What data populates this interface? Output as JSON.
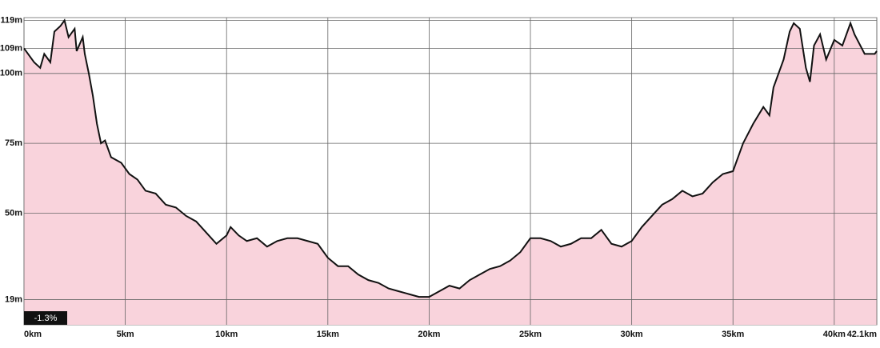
{
  "chart_data": {
    "type": "area",
    "x": [
      0,
      0.5,
      0.8,
      1.0,
      1.3,
      1.5,
      1.8,
      2.0,
      2.2,
      2.5,
      2.6,
      2.9,
      3.0,
      3.2,
      3.4,
      3.6,
      3.8,
      4.0,
      4.3,
      4.8,
      5.2,
      5.6,
      6.0,
      6.5,
      7.0,
      7.5,
      8.0,
      8.5,
      9.0,
      9.5,
      10.0,
      10.2,
      10.6,
      11.0,
      11.5,
      12.0,
      12.5,
      13.0,
      13.5,
      14.0,
      14.5,
      15.0,
      15.5,
      16.0,
      16.5,
      17.0,
      17.5,
      18.0,
      18.5,
      19.0,
      19.5,
      20.0,
      20.5,
      21.0,
      21.5,
      22.0,
      22.5,
      23.0,
      23.5,
      24.0,
      24.5,
      25.0,
      25.5,
      26.0,
      26.5,
      27.0,
      27.5,
      28.0,
      28.5,
      29.0,
      29.5,
      30.0,
      30.5,
      31.0,
      31.5,
      32.0,
      32.5,
      33.0,
      33.5,
      34.0,
      34.5,
      35.0,
      35.5,
      36.0,
      36.5,
      36.8,
      37.0,
      37.5,
      37.8,
      38.0,
      38.3,
      38.6,
      38.8,
      39.0,
      39.3,
      39.6,
      40.0,
      40.4,
      40.8,
      41.0,
      41.5,
      42.0,
      42.1
    ],
    "values": [
      109,
      104,
      102,
      107,
      104,
      115,
      117,
      119,
      113,
      116,
      108,
      113,
      107,
      100,
      92,
      82,
      75,
      76,
      70,
      68,
      64,
      62,
      58,
      57,
      53,
      52,
      49,
      47,
      43,
      39,
      42,
      45,
      42,
      40,
      41,
      38,
      40,
      41,
      41,
      40,
      39,
      34,
      31,
      31,
      28,
      26,
      25,
      23,
      22,
      21,
      20,
      20,
      22,
      24,
      23,
      26,
      28,
      30,
      31,
      33,
      36,
      41,
      41,
      40,
      38,
      39,
      41,
      41,
      44,
      39,
      38,
      40,
      45,
      49,
      53,
      55,
      58,
      56,
      57,
      61,
      64,
      65,
      75,
      82,
      88,
      85,
      95,
      105,
      115,
      118,
      116,
      102,
      97,
      110,
      114,
      105,
      112,
      110,
      118,
      114,
      107,
      107,
      108
    ],
    "color": "#f9d3dc",
    "line_color": "#111111",
    "xlim": [
      0,
      42.1
    ],
    "xticks": [
      {
        "value": 0,
        "label": "0km"
      },
      {
        "value": 5,
        "label": "5km"
      },
      {
        "value": 10,
        "label": "10km"
      },
      {
        "value": 15,
        "label": "15km"
      },
      {
        "value": 20,
        "label": "20km"
      },
      {
        "value": 25,
        "label": "25km"
      },
      {
        "value": 30,
        "label": "30km"
      },
      {
        "value": 35,
        "label": "35km"
      },
      {
        "value": 40,
        "label": "40km"
      },
      {
        "value": 42.1,
        "label": "42.1km"
      }
    ],
    "ylim": [
      10,
      120
    ],
    "yticks": [
      {
        "value": 19,
        "label": "19m"
      },
      {
        "value": 50,
        "label": "50m"
      },
      {
        "value": 75,
        "label": "75m"
      },
      {
        "value": 100,
        "label": "100m"
      },
      {
        "value": 109,
        "label": "109m"
      },
      {
        "value": 119,
        "label": "119m"
      }
    ],
    "grid": true,
    "grade": "-1.3%"
  }
}
